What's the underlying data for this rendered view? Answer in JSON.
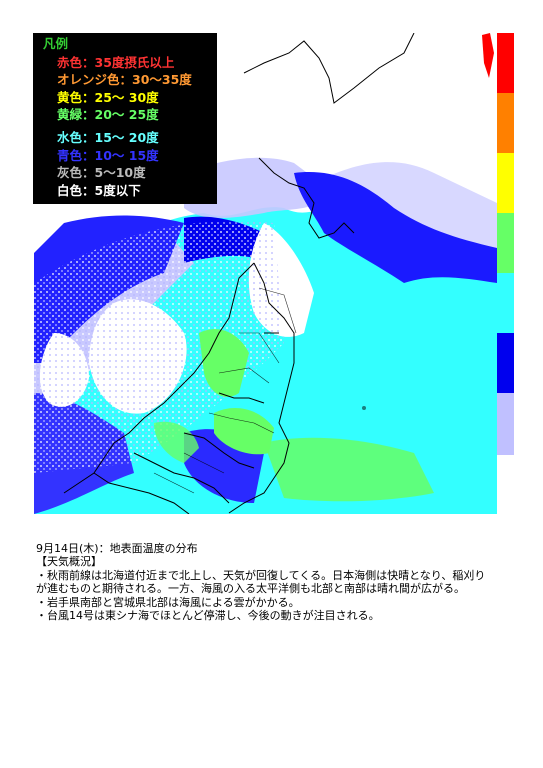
{
  "legend": {
    "title": "凡例",
    "items": [
      {
        "label": "赤色：35度摂氏以上",
        "color": "#ff3333"
      },
      {
        "label": "オレンジ色：30～35度",
        "color": "#ff9933"
      },
      {
        "label": "黄色：25～ 30度",
        "color": "#ffff00"
      },
      {
        "label": "黄緑：20～ 25度",
        "color": "#66ff66"
      },
      {
        "label": "水色：15～ 20度",
        "color": "#66ffff"
      },
      {
        "label": "青色：10～ 15度",
        "color": "#3333ff"
      },
      {
        "label": "灰色：5～10度",
        "color": "#bbbbbb"
      },
      {
        "label": "白色：5度以下",
        "color": "#ffffff"
      }
    ]
  },
  "scale_colors": [
    "#ff0000",
    "#ff8000",
    "#ffff00",
    "#66ff66",
    "#33ffff",
    "#0000ee",
    "#c0c0ff"
  ],
  "caption": {
    "title": "9月14日(木)：地表面温度の分布",
    "heading": "【天気概況】",
    "lines": [
      "・秋雨前線は北海道付近まで北上し、天気が回復してくる。日本海側は快晴となり、稲刈り",
      "が進むものと期待される。一方、海風の入る太平洋側も北部と南部は晴れ間が広がる。",
      "・岩手県南部と宮城県北部は海風による雲がかかる。",
      "・台風14号は東シナ海でほとんど停滞し、今後の動きが注目される。"
    ]
  }
}
